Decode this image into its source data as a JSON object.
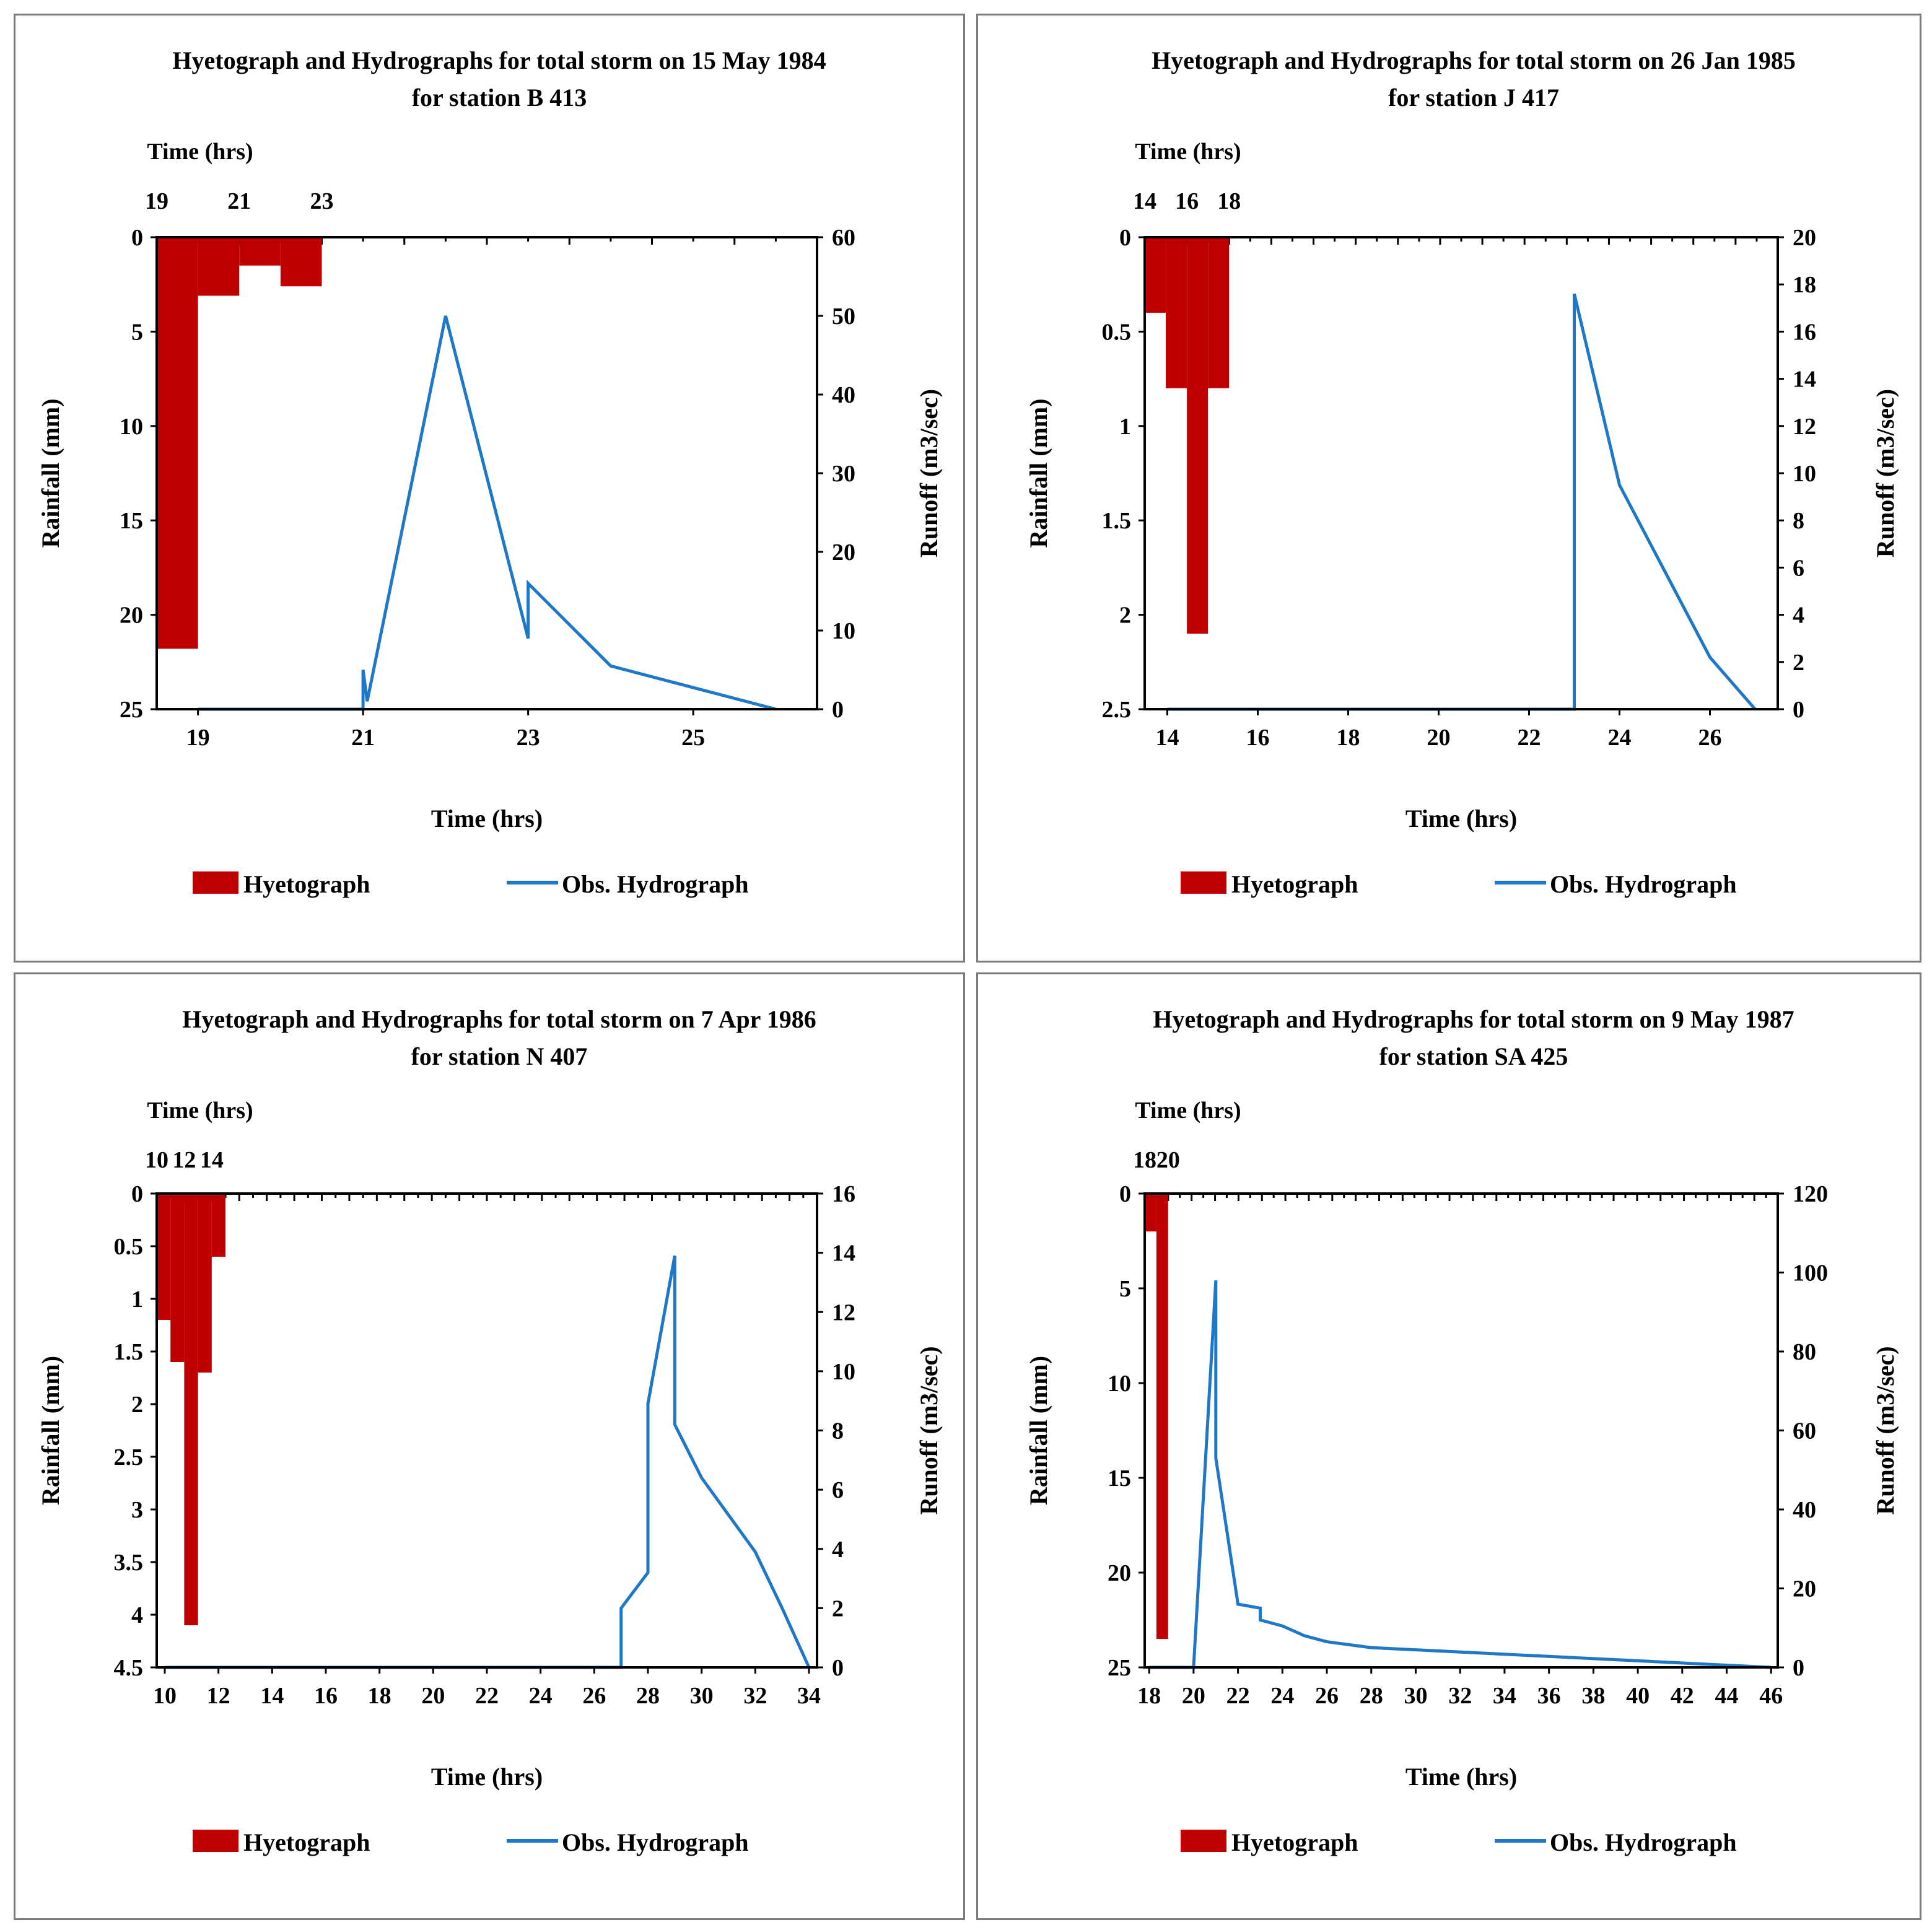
{
  "colors": {
    "hyetograph": "#c00000",
    "hydrograph": "#1f77c8",
    "axis": "#000000",
    "frame": "#7a7a7a"
  },
  "chart_data": [
    {
      "type": "bar+line",
      "title_line1": "Hyetograph and Hydrographs for total storm on 15 May 1984",
      "title_line2": "for station B 413",
      "top_axis_label": "Time (hrs)",
      "top_ticks": [
        "19",
        "21",
        "23"
      ],
      "xlabel": "Time (hrs)",
      "ylabel_left": "Rainfall (mm)",
      "ylabel_right": "Runoff (m3/sec)",
      "xlim": [
        18.5,
        26.5
      ],
      "xticks": [
        19,
        21,
        23,
        25
      ],
      "rain_ylim": [
        0,
        25
      ],
      "rain_yticks": [
        0,
        5,
        10,
        15,
        20,
        25
      ],
      "runoff_ylim": [
        0,
        60
      ],
      "runoff_yticks": [
        0,
        10,
        20,
        30,
        40,
        50,
        60
      ],
      "top_xlim": [
        19,
        35
      ],
      "hyetograph": [
        {
          "t0": 19.0,
          "t1": 20.0,
          "rain": 21.8
        },
        {
          "t0": 20.0,
          "t1": 21.0,
          "rain": 3.1
        },
        {
          "t0": 21.0,
          "t1": 22.0,
          "rain": 1.5
        },
        {
          "t0": 22.0,
          "t1": 23.0,
          "rain": 2.6
        }
      ],
      "hydrograph": [
        [
          19,
          0
        ],
        [
          21,
          0
        ],
        [
          21,
          5
        ],
        [
          21.05,
          1
        ],
        [
          22,
          50
        ],
        [
          23,
          9
        ],
        [
          23,
          16
        ],
        [
          24,
          5.5
        ],
        [
          26,
          0
        ]
      ],
      "legend": [
        "Hyetograph",
        "Obs. Hydrograph"
      ]
    },
    {
      "type": "bar+line",
      "title_line1": "Hyetograph and Hydrographs for total storm on 26 Jan 1985",
      "title_line2": "for station J 417",
      "top_axis_label": "Time (hrs)",
      "top_ticks": [
        "14",
        "16",
        "18"
      ],
      "xlabel": "Time (hrs)",
      "ylabel_left": "Rainfall (mm)",
      "ylabel_right": "Runoff (m3/sec)",
      "xlim": [
        13.5,
        27.5
      ],
      "xticks": [
        14,
        16,
        18,
        20,
        22,
        24,
        26
      ],
      "rain_ylim": [
        0,
        2.5
      ],
      "rain_yticks": [
        0,
        0.5,
        1,
        1.5,
        2,
        2.5
      ],
      "runoff_ylim": [
        0,
        20
      ],
      "runoff_yticks": [
        0,
        2,
        4,
        6,
        8,
        10,
        12,
        14,
        16,
        18,
        20
      ],
      "top_xlim": [
        14,
        44
      ],
      "hyetograph": [
        {
          "t0": 14.0,
          "t1": 15.0,
          "rain": 0.4
        },
        {
          "t0": 15.0,
          "t1": 16.0,
          "rain": 0.8
        },
        {
          "t0": 16.0,
          "t1": 17.0,
          "rain": 2.1
        },
        {
          "t0": 17.0,
          "t1": 18.0,
          "rain": 0.8
        }
      ],
      "hydrograph": [
        [
          14,
          0
        ],
        [
          23,
          0
        ],
        [
          23,
          17.6
        ],
        [
          24,
          9.5
        ],
        [
          26,
          2.2
        ],
        [
          27,
          0
        ]
      ],
      "legend": [
        "Hyetograph",
        "Obs. Hydrograph"
      ]
    },
    {
      "type": "bar+line",
      "title_line1": "Hyetograph and Hydrographs for total storm on 7 Apr 1986",
      "title_line2": "for station N 407",
      "top_axis_label": "Time (hrs)",
      "top_ticks": [
        "10",
        "12",
        "14"
      ],
      "xlabel": "Time (hrs)",
      "ylabel_left": "Rainfall (mm)",
      "ylabel_right": "Runoff (m3/sec)",
      "xlim": [
        9.7,
        34.3
      ],
      "xticks": [
        10,
        12,
        14,
        16,
        18,
        20,
        22,
        24,
        26,
        28,
        30,
        32,
        34
      ],
      "rain_ylim": [
        0,
        4.5
      ],
      "rain_yticks": [
        0,
        0.5,
        1,
        1.5,
        2,
        2.5,
        3,
        3.5,
        4,
        4.5
      ],
      "runoff_ylim": [
        0,
        16
      ],
      "runoff_yticks": [
        0,
        2,
        4,
        6,
        8,
        10,
        12,
        14,
        16
      ],
      "top_xlim": [
        10,
        58
      ],
      "hyetograph": [
        {
          "t0": 10.0,
          "t1": 11.0,
          "rain": 1.2
        },
        {
          "t0": 11.0,
          "t1": 12.0,
          "rain": 1.6
        },
        {
          "t0": 12.0,
          "t1": 13.0,
          "rain": 4.1
        },
        {
          "t0": 13.0,
          "t1": 14.0,
          "rain": 1.7
        },
        {
          "t0": 14.0,
          "t1": 15.0,
          "rain": 0.6
        }
      ],
      "hydrograph": [
        [
          10,
          0
        ],
        [
          27,
          0
        ],
        [
          27,
          2
        ],
        [
          28,
          3.2
        ],
        [
          28,
          8.9
        ],
        [
          29,
          13.9
        ],
        [
          29,
          8.2
        ],
        [
          30,
          6.4
        ],
        [
          32,
          3.9
        ],
        [
          33,
          2
        ],
        [
          34,
          0
        ]
      ],
      "legend": [
        "Hyetograph",
        "Obs. Hydrograph"
      ]
    },
    {
      "type": "bar+line",
      "title_line1": "Hyetograph and Hydrographs for total storm on 9 May 1987",
      "title_line2": "for station SA 425",
      "top_axis_label": "Time (hrs)",
      "top_ticks": [
        "18",
        "20"
      ],
      "xlabel": "Time (hrs)",
      "ylabel_left": "Rainfall (mm)",
      "ylabel_right": "Runoff (m3/sec)",
      "xlim": [
        17.8,
        46.3
      ],
      "xticks": [
        18,
        20,
        22,
        24,
        26,
        28,
        30,
        32,
        34,
        36,
        38,
        40,
        42,
        44,
        46
      ],
      "rain_ylim": [
        0,
        25
      ],
      "rain_yticks": [
        0,
        5,
        10,
        15,
        20,
        25
      ],
      "runoff_ylim": [
        0,
        120
      ],
      "runoff_yticks": [
        0,
        20,
        40,
        60,
        80,
        100,
        120
      ],
      "top_xlim": [
        18,
        72
      ],
      "hyetograph": [
        {
          "t0": 18.0,
          "t1": 19.0,
          "rain": 2.0
        },
        {
          "t0": 19.0,
          "t1": 20.0,
          "rain": 23.5
        }
      ],
      "hydrograph": [
        [
          18,
          0
        ],
        [
          20,
          0
        ],
        [
          21,
          98
        ],
        [
          21,
          53
        ],
        [
          22,
          16
        ],
        [
          23,
          15
        ],
        [
          23,
          12
        ],
        [
          24,
          10.5
        ],
        [
          25,
          8
        ],
        [
          26,
          6.5
        ],
        [
          28,
          5
        ],
        [
          46,
          0
        ]
      ],
      "legend": [
        "Hyetograph",
        "Obs. Hydrograph"
      ]
    }
  ]
}
